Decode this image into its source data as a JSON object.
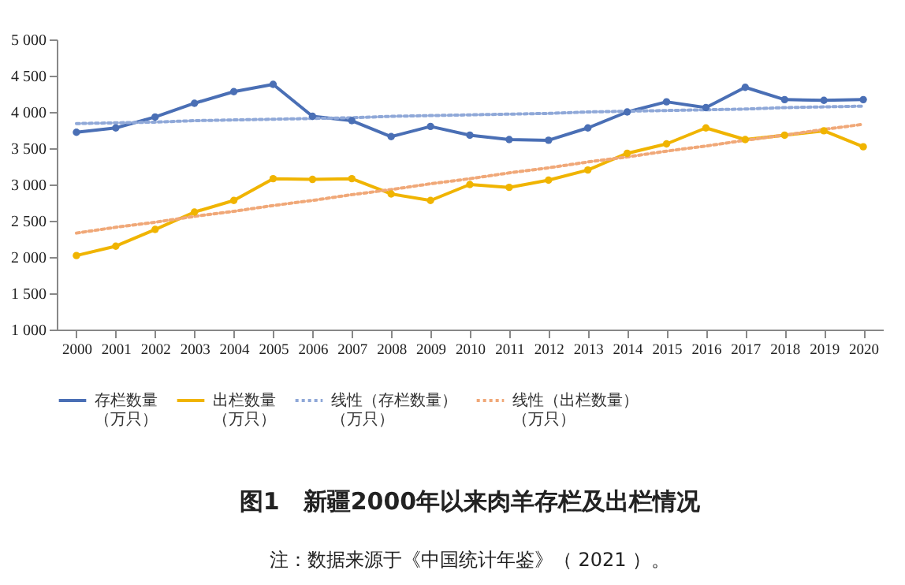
{
  "chart_data": {
    "type": "line",
    "title": "图1　新疆2000年以来肉羊存栏及出栏情况",
    "annotations": [
      "注：数据来源于《中国统计年鉴》（ 2021 ）。"
    ],
    "categories": [
      "2000",
      "2001",
      "2002",
      "2003",
      "2004",
      "2005",
      "2006",
      "2007",
      "2008",
      "2009",
      "2010",
      "2011",
      "2012",
      "2013",
      "2014",
      "2015",
      "2016",
      "2017",
      "2018",
      "2019",
      "2020"
    ],
    "series": [
      {
        "name": "存栏数量（万只）",
        "color": "#4a6fb5",
        "values": [
          3720,
          3780,
          3930,
          4120,
          4280,
          4380,
          3940,
          3880,
          3660,
          3800,
          3680,
          3620,
          3610,
          3780,
          4000,
          4140,
          4060,
          4340,
          4170,
          4160,
          4170
        ]
      },
      {
        "name": "出栏数量（万只）",
        "color": "#f0b400",
        "values": [
          2020,
          2150,
          2380,
          2620,
          2780,
          3080,
          3070,
          3080,
          2870,
          2780,
          3000,
          2960,
          3060,
          3200,
          3430,
          3560,
          3780,
          3620,
          3680,
          3740,
          3520
        ]
      },
      {
        "name": "线性（存栏数量）（万只）",
        "color": "#8fa8d8",
        "values": [
          3840,
          3850,
          3860,
          3880,
          3890,
          3900,
          3910,
          3920,
          3940,
          3950,
          3960,
          3970,
          3980,
          4000,
          4010,
          4020,
          4030,
          4040,
          4060,
          4070,
          4080
        ],
        "line_style": "dotted",
        "marker": "none"
      },
      {
        "name": "线性（出栏数量）（万只）",
        "color": "#f0a878",
        "values": [
          2330,
          2410,
          2480,
          2560,
          2630,
          2710,
          2780,
          2860,
          2930,
          3010,
          3080,
          3160,
          3230,
          3310,
          3380,
          3460,
          3530,
          3610,
          3680,
          3760,
          3830
        ],
        "line_style": "dotted",
        "marker": "none"
      }
    ],
    "ylim": [
      1000,
      5000
    ],
    "yticks": [
      {
        "value": 1000,
        "label": "1 000"
      },
      {
        "value": 1500,
        "label": "1 500"
      },
      {
        "value": 2000,
        "label": "2 000"
      },
      {
        "value": 2500,
        "label": "2 500"
      },
      {
        "value": 3000,
        "label": "3 000"
      },
      {
        "value": 3500,
        "label": "3 500"
      },
      {
        "value": 4000,
        "label": "4 000"
      },
      {
        "value": 4500,
        "label": "4 500"
      },
      {
        "value": 5000,
        "label": "5 000"
      }
    ],
    "grid": false,
    "legend": "bottom",
    "marker": "circle",
    "line_style": "solid"
  }
}
